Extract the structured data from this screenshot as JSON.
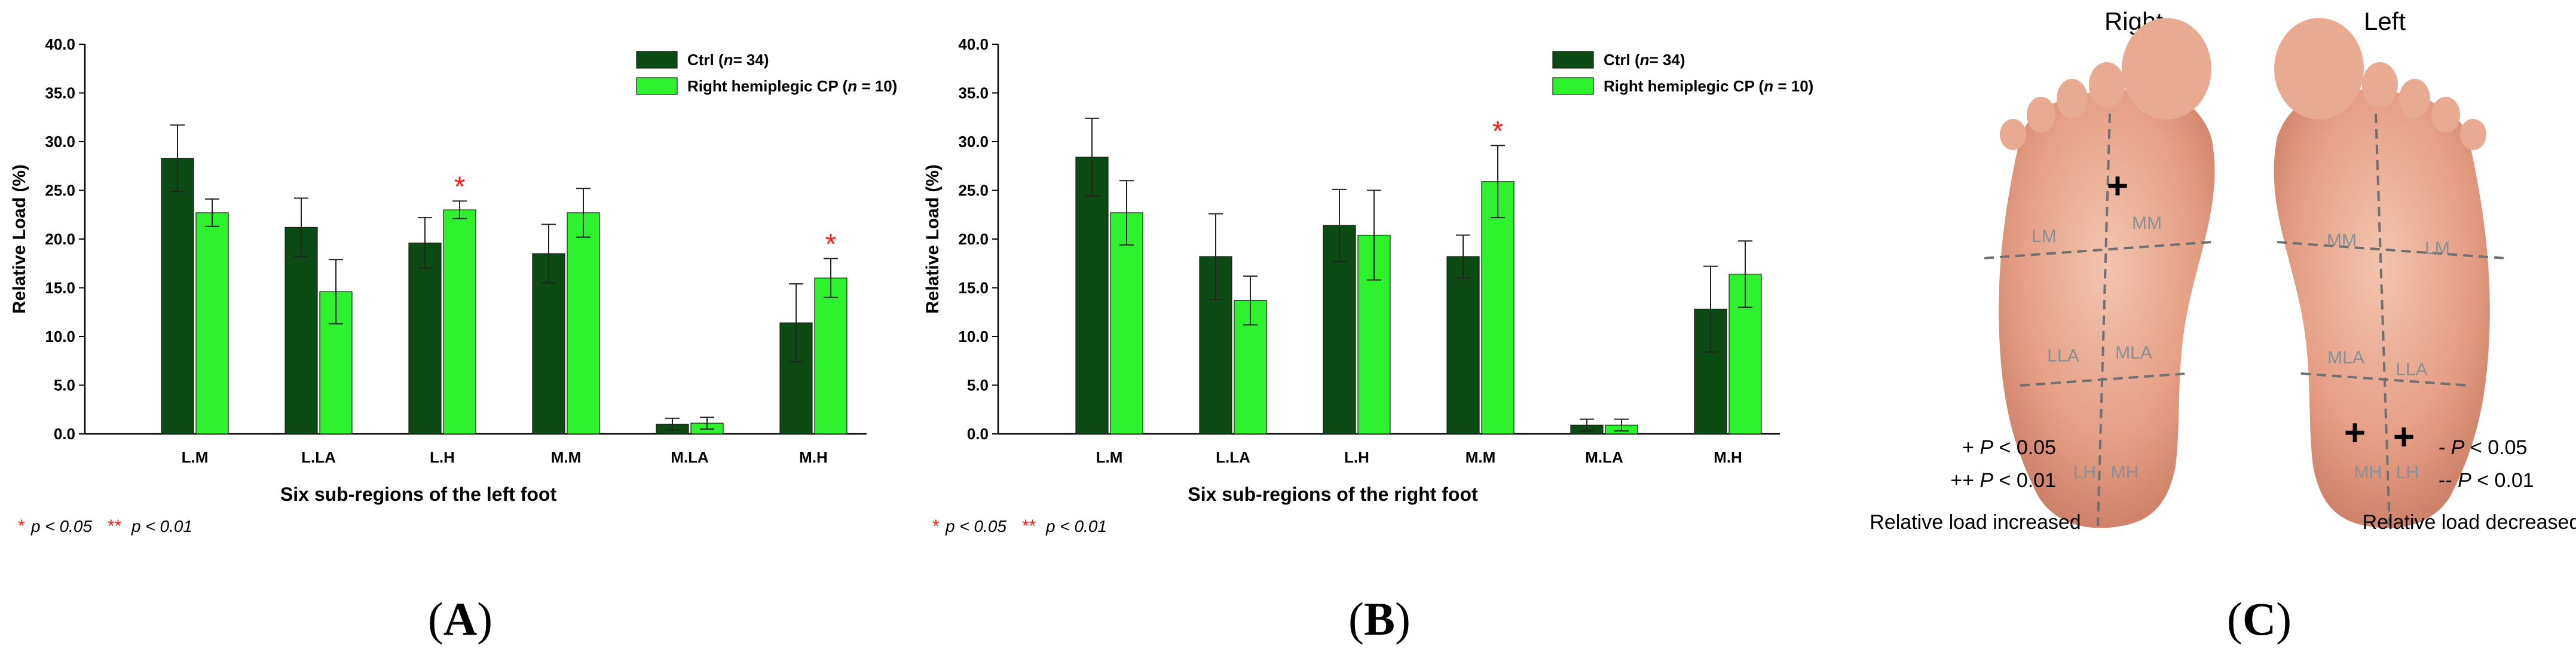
{
  "colors": {
    "ctrl": "#0b4a12",
    "cp": "#2ff22f",
    "sig": "#ff1a1a",
    "axis": "#000000",
    "foot": "#e8a48c",
    "zone": "#8a8a8a"
  },
  "chart_data": [
    {
      "type": "bar",
      "panel": "(A)",
      "categories": [
        "L.M",
        "L.LA",
        "L.H",
        "M.M",
        "M.LA",
        "M.H"
      ],
      "series": [
        {
          "name": "Ctrl (n= 34)",
          "name_plain": "Ctrl (",
          "name_italic": "n",
          "name_rest": "= 34)",
          "values": [
            28.3,
            21.2,
            19.6,
            18.5,
            1.0,
            11.4
          ],
          "errors": [
            3.4,
            3.0,
            2.6,
            3.0,
            0.6,
            4.0
          ]
        },
        {
          "name": "Right hemiplegic CP (n = 10)",
          "name_plain": "Right hemiplegic CP (",
          "name_italic": "n",
          "name_rest": " = 10)",
          "values": [
            22.7,
            14.6,
            23.0,
            22.7,
            1.1,
            16.0
          ],
          "errors": [
            1.4,
            3.3,
            0.9,
            2.5,
            0.6,
            2.0
          ]
        }
      ],
      "significance": [
        "",
        "",
        "*",
        "",
        "",
        "*"
      ],
      "xlabel": "Six sub-regions of the left foot",
      "ylabel": "Relative Load (%)",
      "ylim": [
        0,
        40
      ],
      "yticks": [
        "0.0",
        "5.0",
        "10.0",
        "15.0",
        "20.0",
        "25.0",
        "30.0",
        "35.0",
        "40.0"
      ],
      "legend_position": "top-right",
      "footnote": {
        "single": "*",
        "single_label": "p < 0.05",
        "double": "**",
        "double_label": "p < 0.01"
      }
    },
    {
      "type": "bar",
      "panel": "(B)",
      "categories": [
        "L.M",
        "L.LA",
        "L.H",
        "M.M",
        "M.LA",
        "M.H"
      ],
      "series": [
        {
          "name": "Ctrl (n= 34)",
          "name_plain": "Ctrl (",
          "name_italic": "n",
          "name_rest": "= 34)",
          "values": [
            28.4,
            18.2,
            21.4,
            18.2,
            0.9,
            12.8
          ],
          "errors": [
            4.0,
            4.4,
            3.7,
            2.2,
            0.6,
            4.4
          ]
        },
        {
          "name": "Right hemiplegic CP (n = 10)",
          "name_plain": "Right hemiplegic CP (",
          "name_italic": "n",
          "name_rest": " = 10)",
          "values": [
            22.7,
            13.7,
            20.4,
            25.9,
            0.9,
            16.4
          ],
          "errors": [
            3.3,
            2.5,
            4.6,
            3.7,
            0.6,
            3.4
          ]
        }
      ],
      "significance": [
        "",
        "",
        "",
        "*",
        "",
        ""
      ],
      "xlabel": "Six sub-regions of the right foot",
      "ylabel": "Relative Load (%)",
      "ylim": [
        0,
        40
      ],
      "yticks": [
        "0.0",
        "5.0",
        "10.0",
        "15.0",
        "20.0",
        "25.0",
        "30.0",
        "35.0",
        "40.0"
      ],
      "legend_position": "top-right",
      "footnote": {
        "single": "*",
        "single_label": "p < 0.05",
        "double": "**",
        "double_label": "p < 0.01"
      }
    }
  ],
  "panel_c": {
    "label": "(C)",
    "right_title": "Right",
    "left_title": "Left",
    "right_zones": [
      "LM",
      "MM",
      "LLA",
      "MLA",
      "LH",
      "MH"
    ],
    "left_zones": [
      "MM",
      "LM",
      "MLA",
      "LLA",
      "MH",
      "LH"
    ],
    "mark": "+",
    "legend_inc_1_sym": "+",
    "legend_inc_1_p": "P",
    "legend_inc_1_rest": " < 0.05",
    "legend_inc_2_sym": "++",
    "legend_inc_2_p": "P",
    "legend_inc_2_rest": " < 0.01",
    "legend_dec_1_sym": "-",
    "legend_dec_1_p": "P",
    "legend_dec_1_rest": " < 0.05",
    "legend_dec_2_sym": "--",
    "legend_dec_2_p": "P",
    "legend_dec_2_rest": " < 0.01",
    "increased_text": "Relative load increased",
    "decreased_text": "Relative load decreased"
  }
}
